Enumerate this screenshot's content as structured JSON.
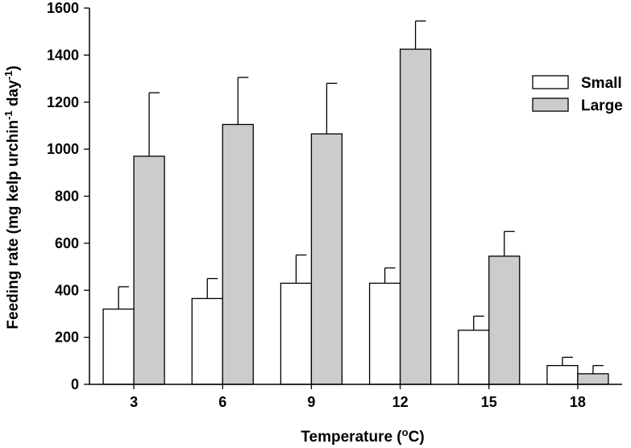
{
  "chart_data": {
    "type": "bar",
    "xlabel": "Temperature (°C)",
    "xlabel_parts": {
      "pre": "Temperature (",
      "sup": "o",
      "post": "C)"
    },
    "ylabel": "Feeding rate (mg kelp urchin-1 day-1)",
    "ylabel_parts": {
      "pre": "Feeding rate (mg kelp urchin",
      "sup1": "-1",
      "mid": " day",
      "sup2": "-1",
      "post": ")"
    },
    "categories": [
      "3",
      "6",
      "9",
      "12",
      "15",
      "18"
    ],
    "ylim": [
      0,
      1600
    ],
    "yticks": [
      0,
      200,
      400,
      600,
      800,
      1000,
      1200,
      1400,
      1600
    ],
    "legend_position": "top-right",
    "series": [
      {
        "name": "Small",
        "color": "#ffffff",
        "values": [
          320,
          365,
          430,
          430,
          230,
          80
        ],
        "errors": [
          95,
          85,
          120,
          65,
          60,
          35
        ]
      },
      {
        "name": "Large",
        "color": "#cccccc",
        "values": [
          970,
          1105,
          1065,
          1425,
          545,
          45
        ],
        "errors": [
          270,
          200,
          215,
          120,
          105,
          35
        ]
      }
    ]
  }
}
